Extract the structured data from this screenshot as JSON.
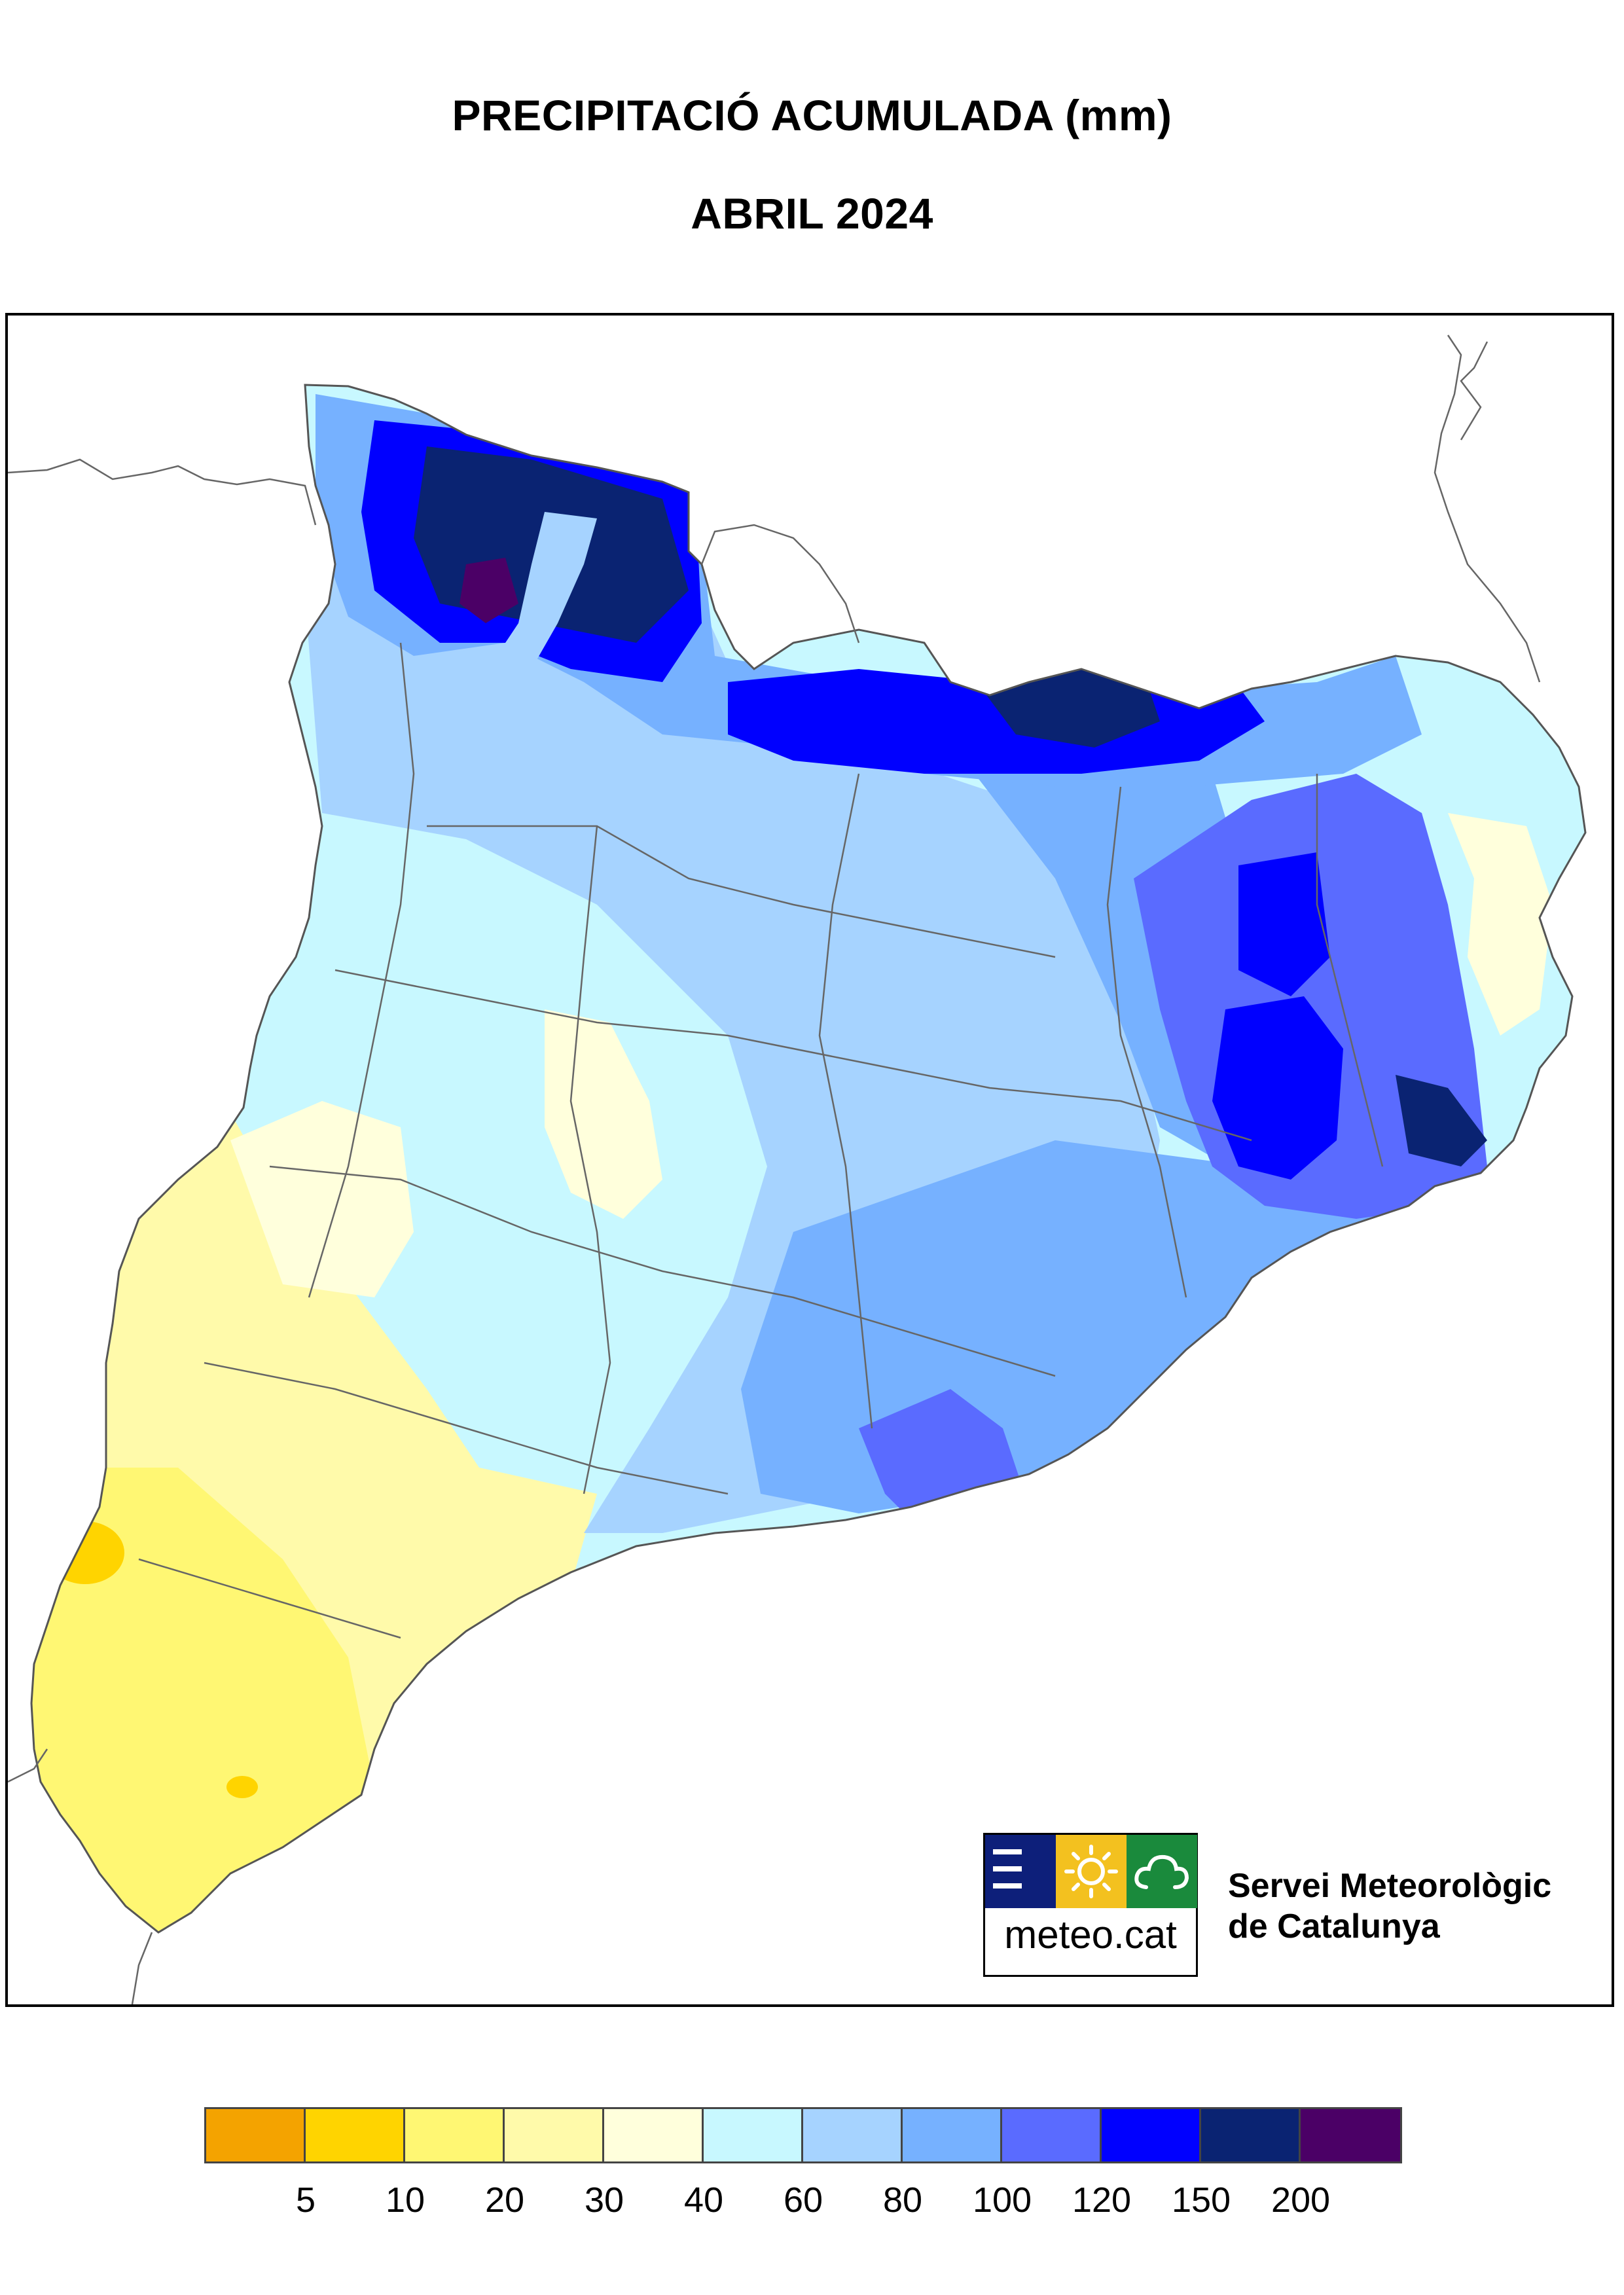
{
  "title": "PRECIPITACIÓ ACUMULADA (mm)",
  "subtitle": "ABRIL 2024",
  "org": {
    "logo_text": "meteo.cat",
    "name_line1": "Servei Meteorològic",
    "name_line2": "de Catalunya",
    "logo_colors": [
      "#0d1f7a",
      "#f3c11f",
      "#1a8a3c"
    ]
  },
  "legend": {
    "colors": [
      "#f4a300",
      "#ffd400",
      "#fff773",
      "#fffaaa",
      "#ffffdc",
      "#c8f8ff",
      "#a6d3ff",
      "#76b1ff",
      "#5a6bff",
      "#0000ff",
      "#0a2372",
      "#4b0066"
    ],
    "ticks": [
      "5",
      "10",
      "20",
      "30",
      "40",
      "60",
      "80",
      "100",
      "120",
      "150",
      "200"
    ]
  },
  "colors": {
    "sea_fill": "#ffffff",
    "border_stroke": "#666666",
    "frame": "#000000"
  }
}
